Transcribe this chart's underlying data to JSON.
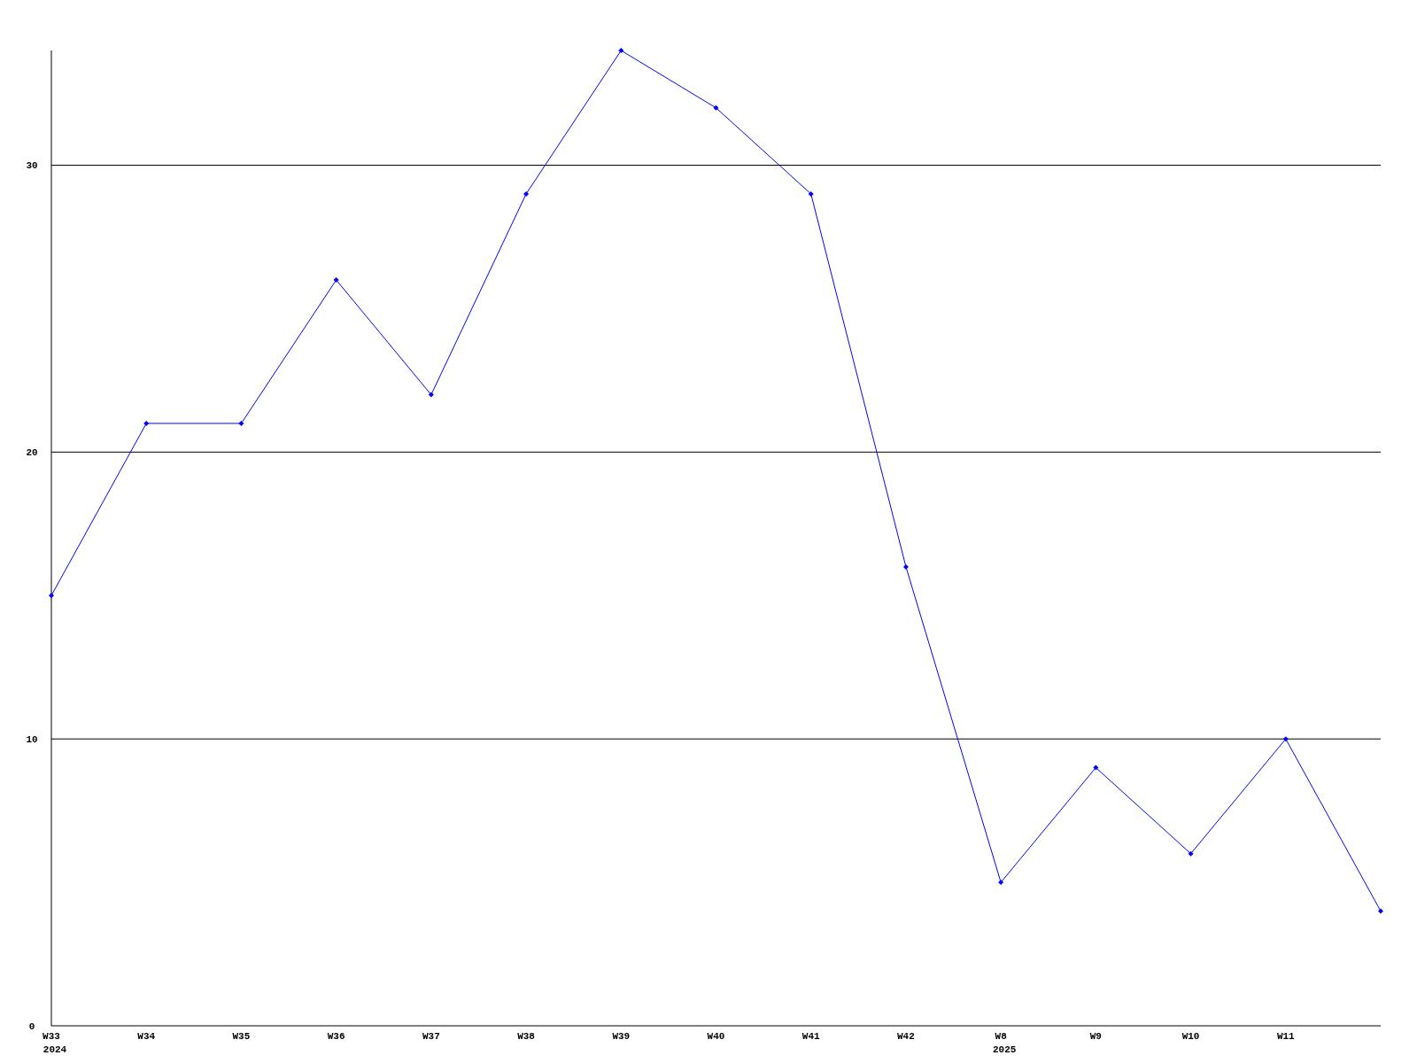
{
  "chart_data": {
    "type": "line",
    "categories": [
      "W33\n2024",
      "W34",
      "W35",
      "W36",
      "W37",
      "W38",
      "W39",
      "W40",
      "W41",
      "W42",
      "W8\n2025",
      "W9",
      "W10",
      "W11",
      null
    ],
    "series": [
      {
        "color": "#0000ff",
        "values": [
          15,
          21,
          21,
          26,
          22,
          29,
          34,
          32,
          29,
          16,
          5,
          9,
          6,
          10,
          4
        ]
      }
    ],
    "ylim": [
      0,
      34
    ],
    "yticks": [
      0,
      10,
      20,
      30
    ],
    "grid": "y",
    "marker": "diamond"
  }
}
